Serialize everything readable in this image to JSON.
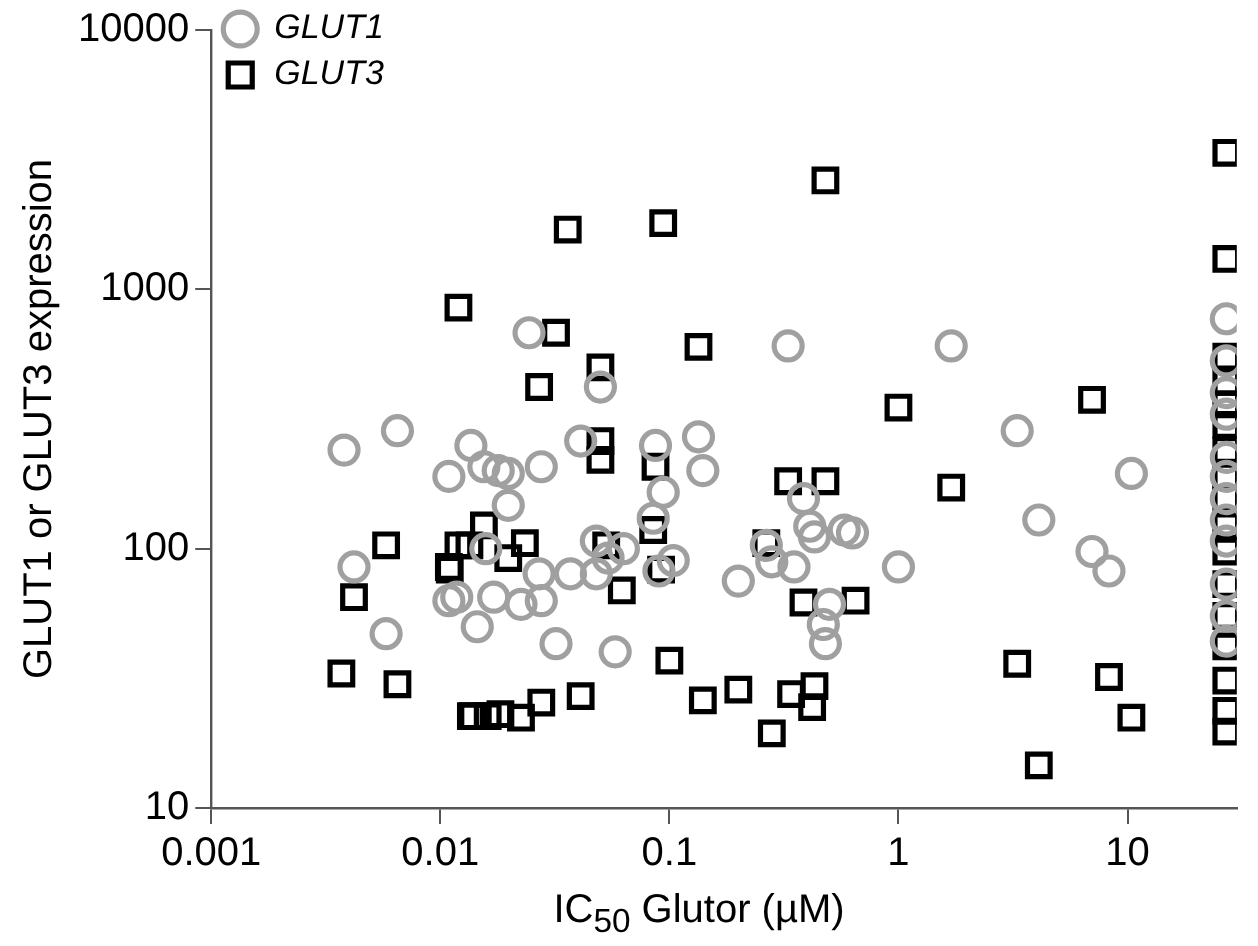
{
  "chart_data": {
    "type": "scatter",
    "xlabel": "IC$_{50}$ Glutor (µM)",
    "ylabel": "GLUT1 or GLUT3 expression",
    "log": "xy",
    "xlim": [
      0.001,
      30
    ],
    "xticks": [
      0.001,
      0.01,
      0.1,
      1,
      10
    ],
    "ylim": [
      10,
      10000
    ],
    "yticks": [
      10,
      100,
      1000,
      10000
    ],
    "grid": false,
    "legend": "top left",
    "series": [
      {
        "name": "GLUT1",
        "color": "#a0a0a0",
        "marker": "circle",
        "x": [
          0.0038,
          0.0065,
          0.0042,
          0.0058,
          0.0109,
          0.0118,
          0.0109,
          0.0244,
          0.05,
          0.33,
          0.041,
          0.087,
          0.134,
          0.14,
          0.0136,
          0.0155,
          0.0179,
          0.0198,
          0.0276,
          0.0198,
          0.094,
          0.385,
          0.41,
          0.43,
          0.085,
          0.048,
          0.0158,
          0.054,
          0.048,
          0.063,
          0.037,
          0.027,
          0.0276,
          0.0225,
          0.09,
          0.104,
          0.0171,
          0.0145,
          0.032,
          0.058,
          0.2,
          0.265,
          0.28,
          0.35,
          0.5,
          0.47,
          0.48,
          0.58,
          1.7,
          3.3,
          10.4,
          4.1,
          7.0,
          8.3,
          1.0,
          0.63,
          27,
          27,
          27,
          27,
          27,
          27,
          27,
          27,
          27,
          27,
          27,
          27
        ],
        "values": [
          240,
          285,
          85,
          47,
          190,
          65,
          63,
          680,
          420,
          605,
          260,
          250,
          270,
          200,
          250,
          207,
          200,
          195,
          207,
          147,
          165,
          156,
          122,
          111,
          131,
          107,
          100,
          92,
          80,
          100,
          80,
          80,
          63,
          61,
          82,
          90,
          65,
          50,
          43,
          40,
          75,
          103,
          89,
          85,
          61,
          51,
          43,
          118,
          605,
          285,
          195,
          129,
          97.5,
          82,
          85,
          115,
          770,
          530,
          400,
          330,
          225,
          190,
          156,
          129,
          107,
          73,
          55,
          44
        ]
      },
      {
        "name": "GLUT3",
        "color": "#000000",
        "marker": "square",
        "x": [
          0.012,
          0.0058,
          0.0042,
          0.0037,
          0.0065,
          0.011,
          0.0136,
          0.0134,
          0.036,
          0.094,
          0.48,
          0.032,
          0.027,
          0.134,
          0.05,
          0.05,
          0.05,
          0.087,
          0.085,
          0.33,
          0.48,
          0.265,
          0.0155,
          0.012,
          0.0234,
          0.0198,
          0.0109,
          0.053,
          0.092,
          0.062,
          0.385,
          0.1,
          0.14,
          0.2,
          0.28,
          0.34,
          0.43,
          0.42,
          0.0139,
          0.0161,
          0.0183,
          0.0225,
          0.0276,
          0.041,
          1.0,
          7.0,
          1.7,
          0.65,
          3.3,
          8.3,
          10.4,
          4.1,
          27,
          27,
          27,
          27,
          27,
          27,
          27,
          27,
          27,
          27,
          27,
          27,
          27,
          27,
          27,
          27,
          27
        ],
        "values": [
          850,
          103,
          65,
          33,
          30,
          83,
          22.6,
          103,
          1700,
          1800,
          2630,
          680,
          420,
          600,
          500,
          260,
          220,
          207,
          118,
          182,
          182,
          105,
          123,
          103,
          105,
          92,
          85,
          103,
          83,
          69,
          62,
          37,
          26,
          28.6,
          19.4,
          27.5,
          29.5,
          24.5,
          22.6,
          22.6,
          23,
          22.3,
          25.5,
          27,
          350,
          375,
          172,
          63,
          36,
          32,
          22.3,
          14.6,
          3360,
          1310,
          550,
          440,
          360,
          300,
          240,
          190,
          156,
          122,
          97.5,
          73,
          55,
          42,
          31,
          23.7,
          19.7
        ]
      }
    ]
  }
}
